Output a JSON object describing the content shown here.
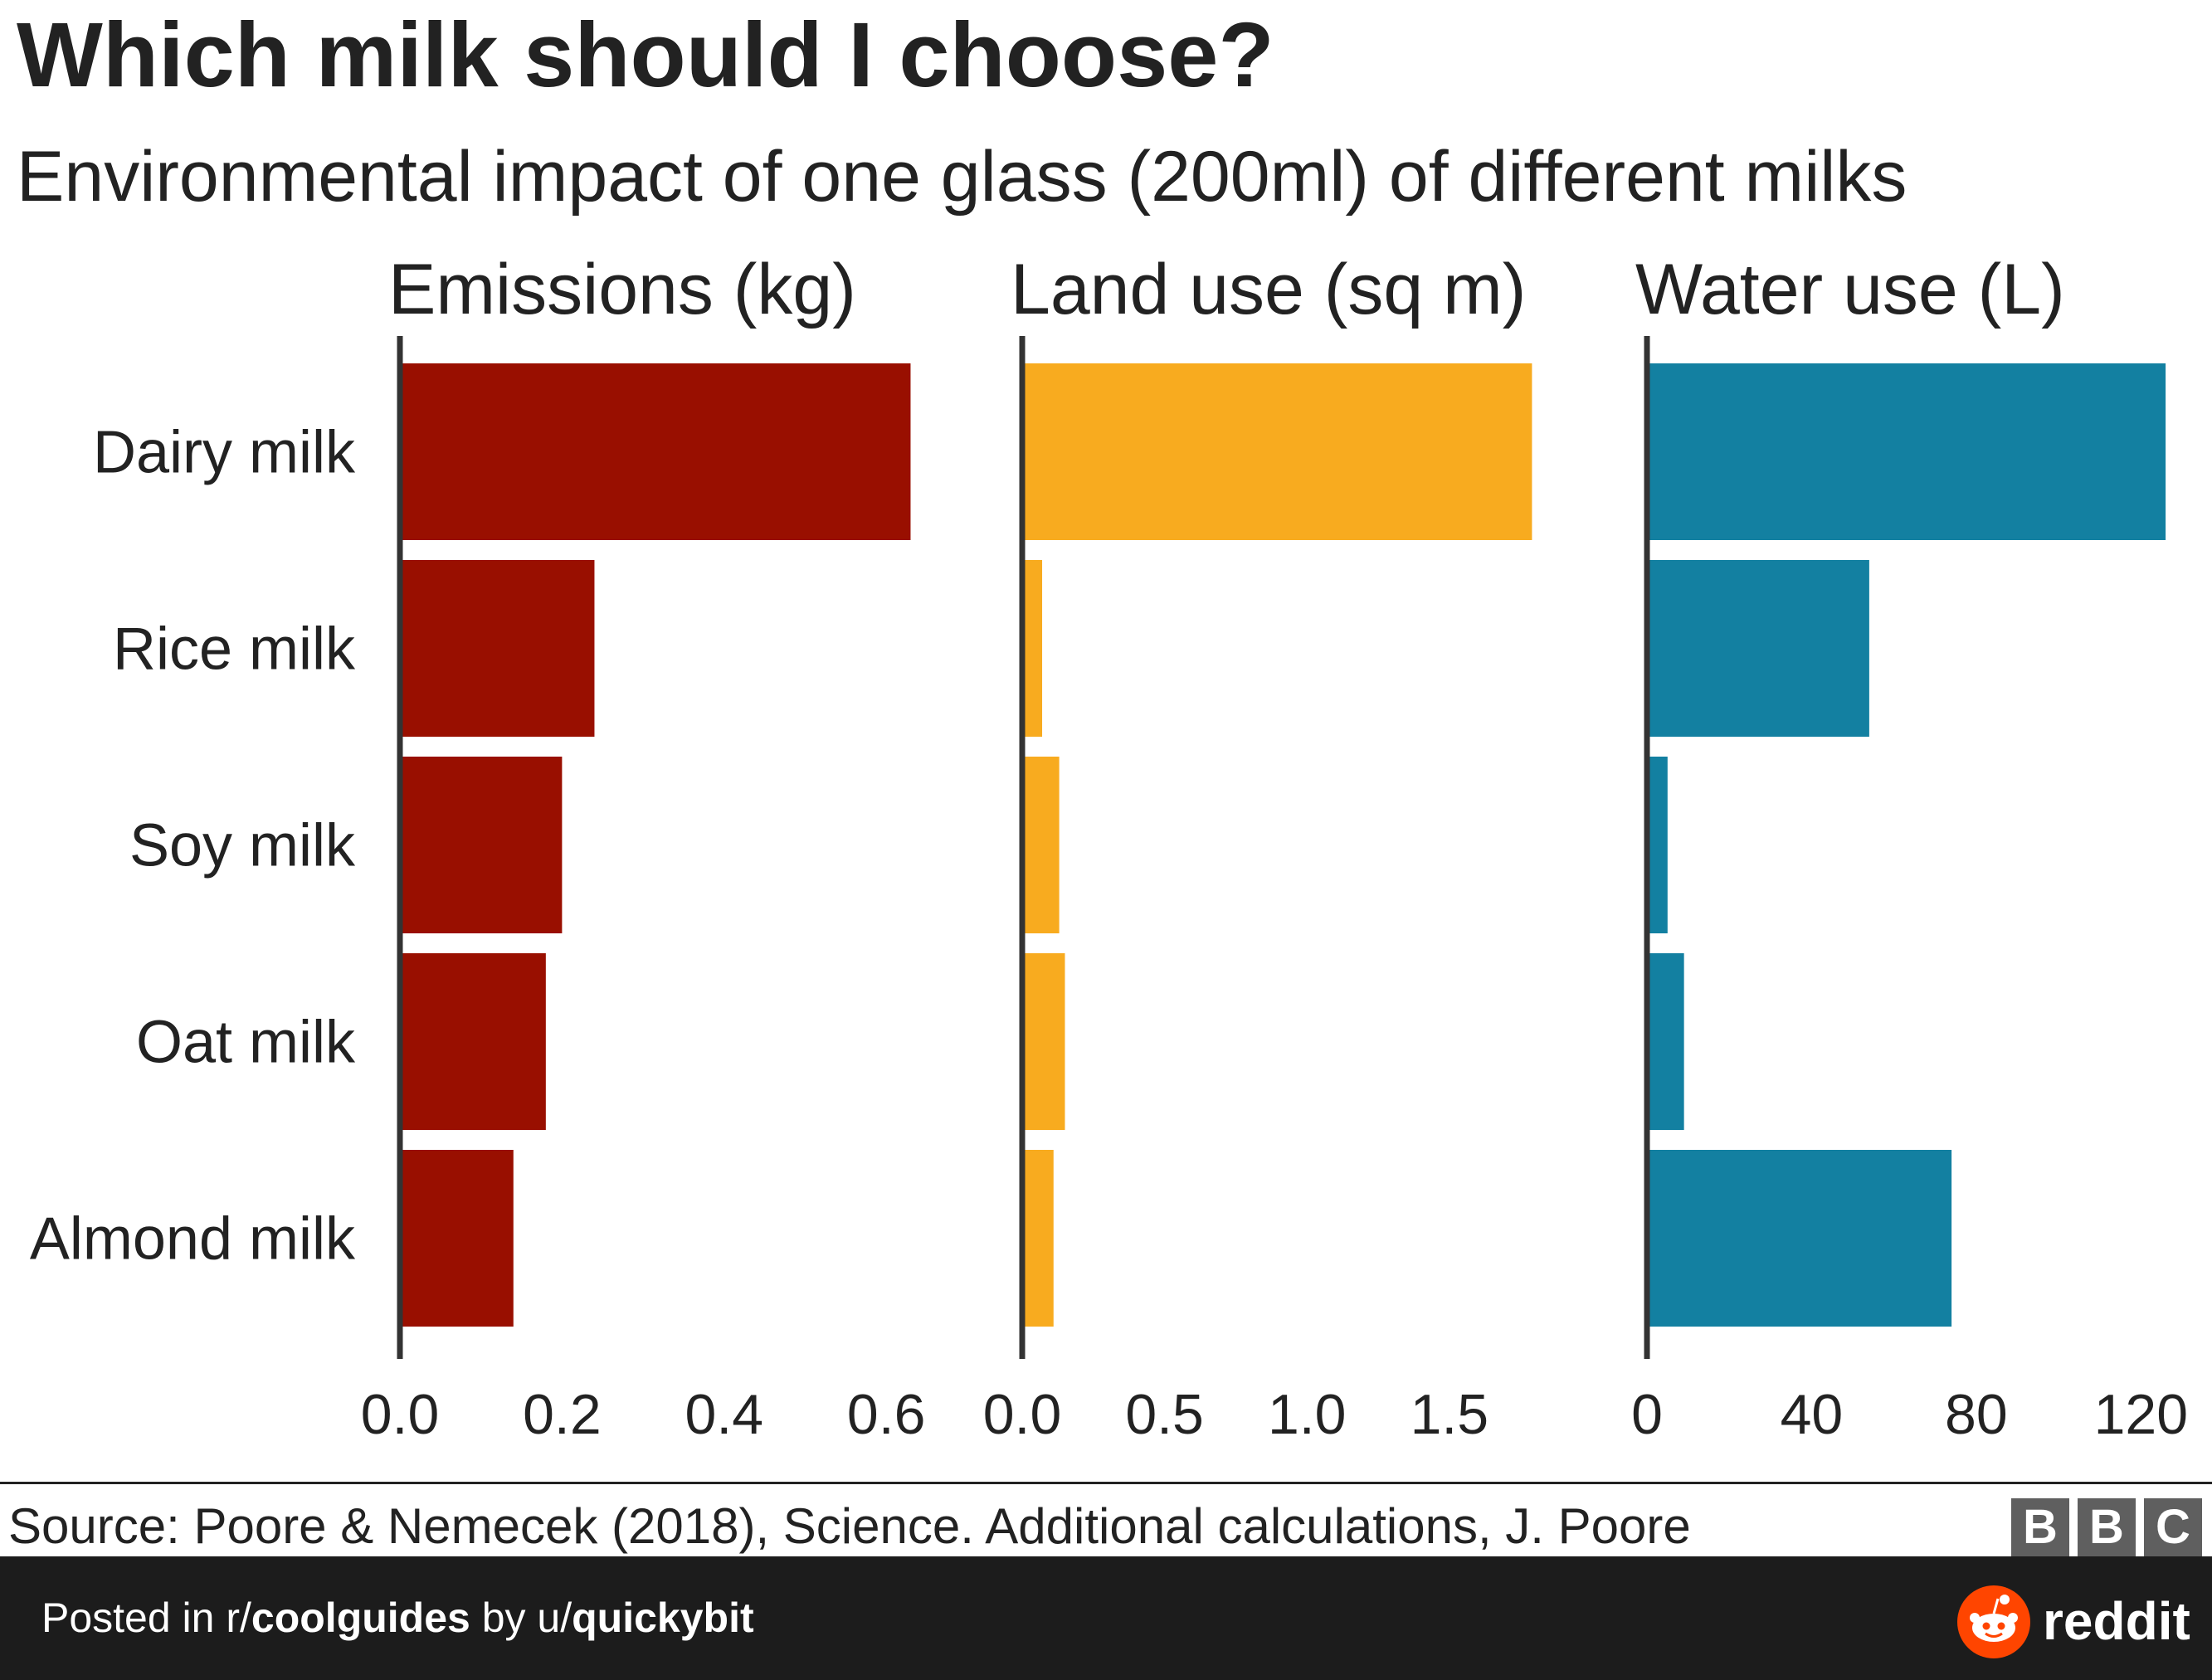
{
  "title": "Which milk should I choose?",
  "subtitle": "Environmental impact of one glass (200ml) of different milks",
  "chart_data": {
    "type": "bar",
    "orientation": "horizontal",
    "categories": [
      "Dairy milk",
      "Rice milk",
      "Soy milk",
      "Oat milk",
      "Almond milk"
    ],
    "panels": [
      {
        "label": "Emissions (kg)",
        "color": "#990f00",
        "values": [
          0.63,
          0.24,
          0.2,
          0.18,
          0.14
        ],
        "xlim": [
          0,
          0.65
        ],
        "ticks": [
          0.0,
          0.2,
          0.4,
          0.6
        ],
        "tick_labels": [
          "0.0",
          "0.2",
          "0.4",
          "0.6"
        ]
      },
      {
        "label": "Land use (sq m)",
        "color": "#f8ab1f",
        "values": [
          1.79,
          0.07,
          0.13,
          0.15,
          0.11
        ],
        "xlim": [
          0,
          1.85
        ],
        "ticks": [
          0.0,
          0.5,
          1.0,
          1.5
        ],
        "tick_labels": [
          "0.0",
          "0.5",
          "1.0",
          "1.5"
        ]
      },
      {
        "label": "Water use (L)",
        "color": "#1380a1",
        "values": [
          126,
          54,
          5,
          9,
          74
        ],
        "xlim": [
          0,
          128
        ],
        "ticks": [
          0,
          40,
          80,
          120
        ],
        "tick_labels": [
          "0",
          "40",
          "80",
          "120"
        ]
      }
    ],
    "grid": false,
    "legend": "none"
  },
  "source": "Source: Poore & Nemecek (2018), Science. Additional calculations, J. Poore",
  "logo_letters": [
    "B",
    "B",
    "C"
  ],
  "footer": {
    "posted_prefix": "Posted in r/",
    "subreddit": "coolguides",
    "by_text": " by u/",
    "username": "quickybit",
    "brand": "reddit"
  }
}
